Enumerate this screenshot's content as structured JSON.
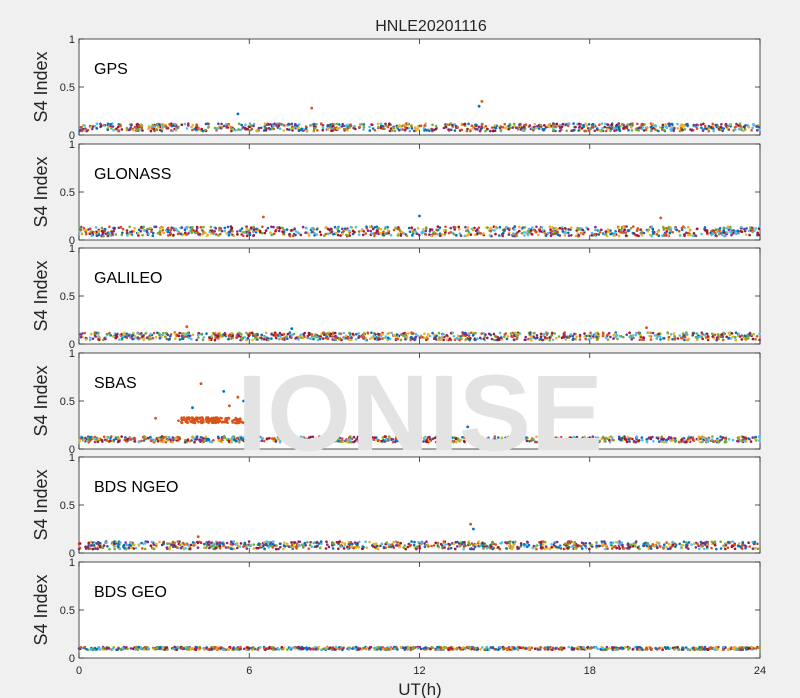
{
  "chart_data": {
    "type": "scatter",
    "title": "HNLE20201116",
    "xlabel": "UT(h)",
    "xlim": [
      0,
      24
    ],
    "xticks": [
      "0",
      "6",
      "12",
      "18",
      "24"
    ],
    "watermark": "IONISE",
    "series_colors": [
      "#0072bd",
      "#d95319",
      "#edb120",
      "#7e2f8e",
      "#77ac30",
      "#4dbeee",
      "#a2142f"
    ],
    "panels": [
      {
        "label": "GPS",
        "ylabel": "S4 Index",
        "ylim": [
          0,
          1
        ],
        "yticks": [
          "0",
          "0.5",
          "1"
        ],
        "baseline": 0.08,
        "noise": 0.04,
        "spikes": [
          {
            "x": 14.2,
            "y": 0.35
          },
          {
            "x": 14.1,
            "y": 0.3
          },
          {
            "x": 8.2,
            "y": 0.28
          },
          {
            "x": 5.6,
            "y": 0.22
          }
        ]
      },
      {
        "label": "GLONASS",
        "ylabel": "S4 Index",
        "ylim": [
          0,
          1
        ],
        "yticks": [
          "0",
          "0.5",
          "1"
        ],
        "baseline": 0.09,
        "noise": 0.05,
        "spikes": [
          {
            "x": 6.5,
            "y": 0.24
          },
          {
            "x": 12.0,
            "y": 0.25
          },
          {
            "x": 20.5,
            "y": 0.23
          }
        ]
      },
      {
        "label": "GALILEO",
        "ylabel": "S4 Index",
        "ylim": [
          0,
          1
        ],
        "yticks": [
          "0",
          "0.5",
          "1"
        ],
        "baseline": 0.08,
        "noise": 0.04,
        "spikes": [
          {
            "x": 3.8,
            "y": 0.18
          },
          {
            "x": 7.5,
            "y": 0.16
          },
          {
            "x": 20.0,
            "y": 0.17
          }
        ]
      },
      {
        "label": "SBAS",
        "ylabel": "S4 Index",
        "ylim": [
          0,
          1
        ],
        "yticks": [
          "0",
          "0.5",
          "1"
        ],
        "baseline": 0.1,
        "noise": 0.03,
        "spikes": [
          {
            "x": 4.3,
            "y": 0.68
          },
          {
            "x": 5.1,
            "y": 0.6
          },
          {
            "x": 5.6,
            "y": 0.54
          },
          {
            "x": 5.8,
            "y": 0.5
          },
          {
            "x": 5.3,
            "y": 0.45
          },
          {
            "x": 4.0,
            "y": 0.43
          },
          {
            "x": 2.7,
            "y": 0.32
          },
          {
            "x": 13.7,
            "y": 0.23
          }
        ],
        "enhanced_segment": {
          "x_start": 3.5,
          "x_end": 6.0,
          "y": 0.3,
          "series": 1
        }
      },
      {
        "label": "BDS NGEO",
        "ylabel": "S4 Index",
        "ylim": [
          0,
          1
        ],
        "yticks": [
          "0",
          "0.5",
          "1"
        ],
        "baseline": 0.08,
        "noise": 0.04,
        "spikes": [
          {
            "x": 13.8,
            "y": 0.3
          },
          {
            "x": 13.9,
            "y": 0.25
          },
          {
            "x": 4.2,
            "y": 0.17
          }
        ]
      },
      {
        "label": "BDS GEO",
        "ylabel": "S4 Index",
        "ylim": [
          0,
          1
        ],
        "yticks": [
          "0",
          "0.5",
          "1"
        ],
        "baseline": 0.1,
        "noise": 0.015,
        "spikes": []
      }
    ]
  }
}
